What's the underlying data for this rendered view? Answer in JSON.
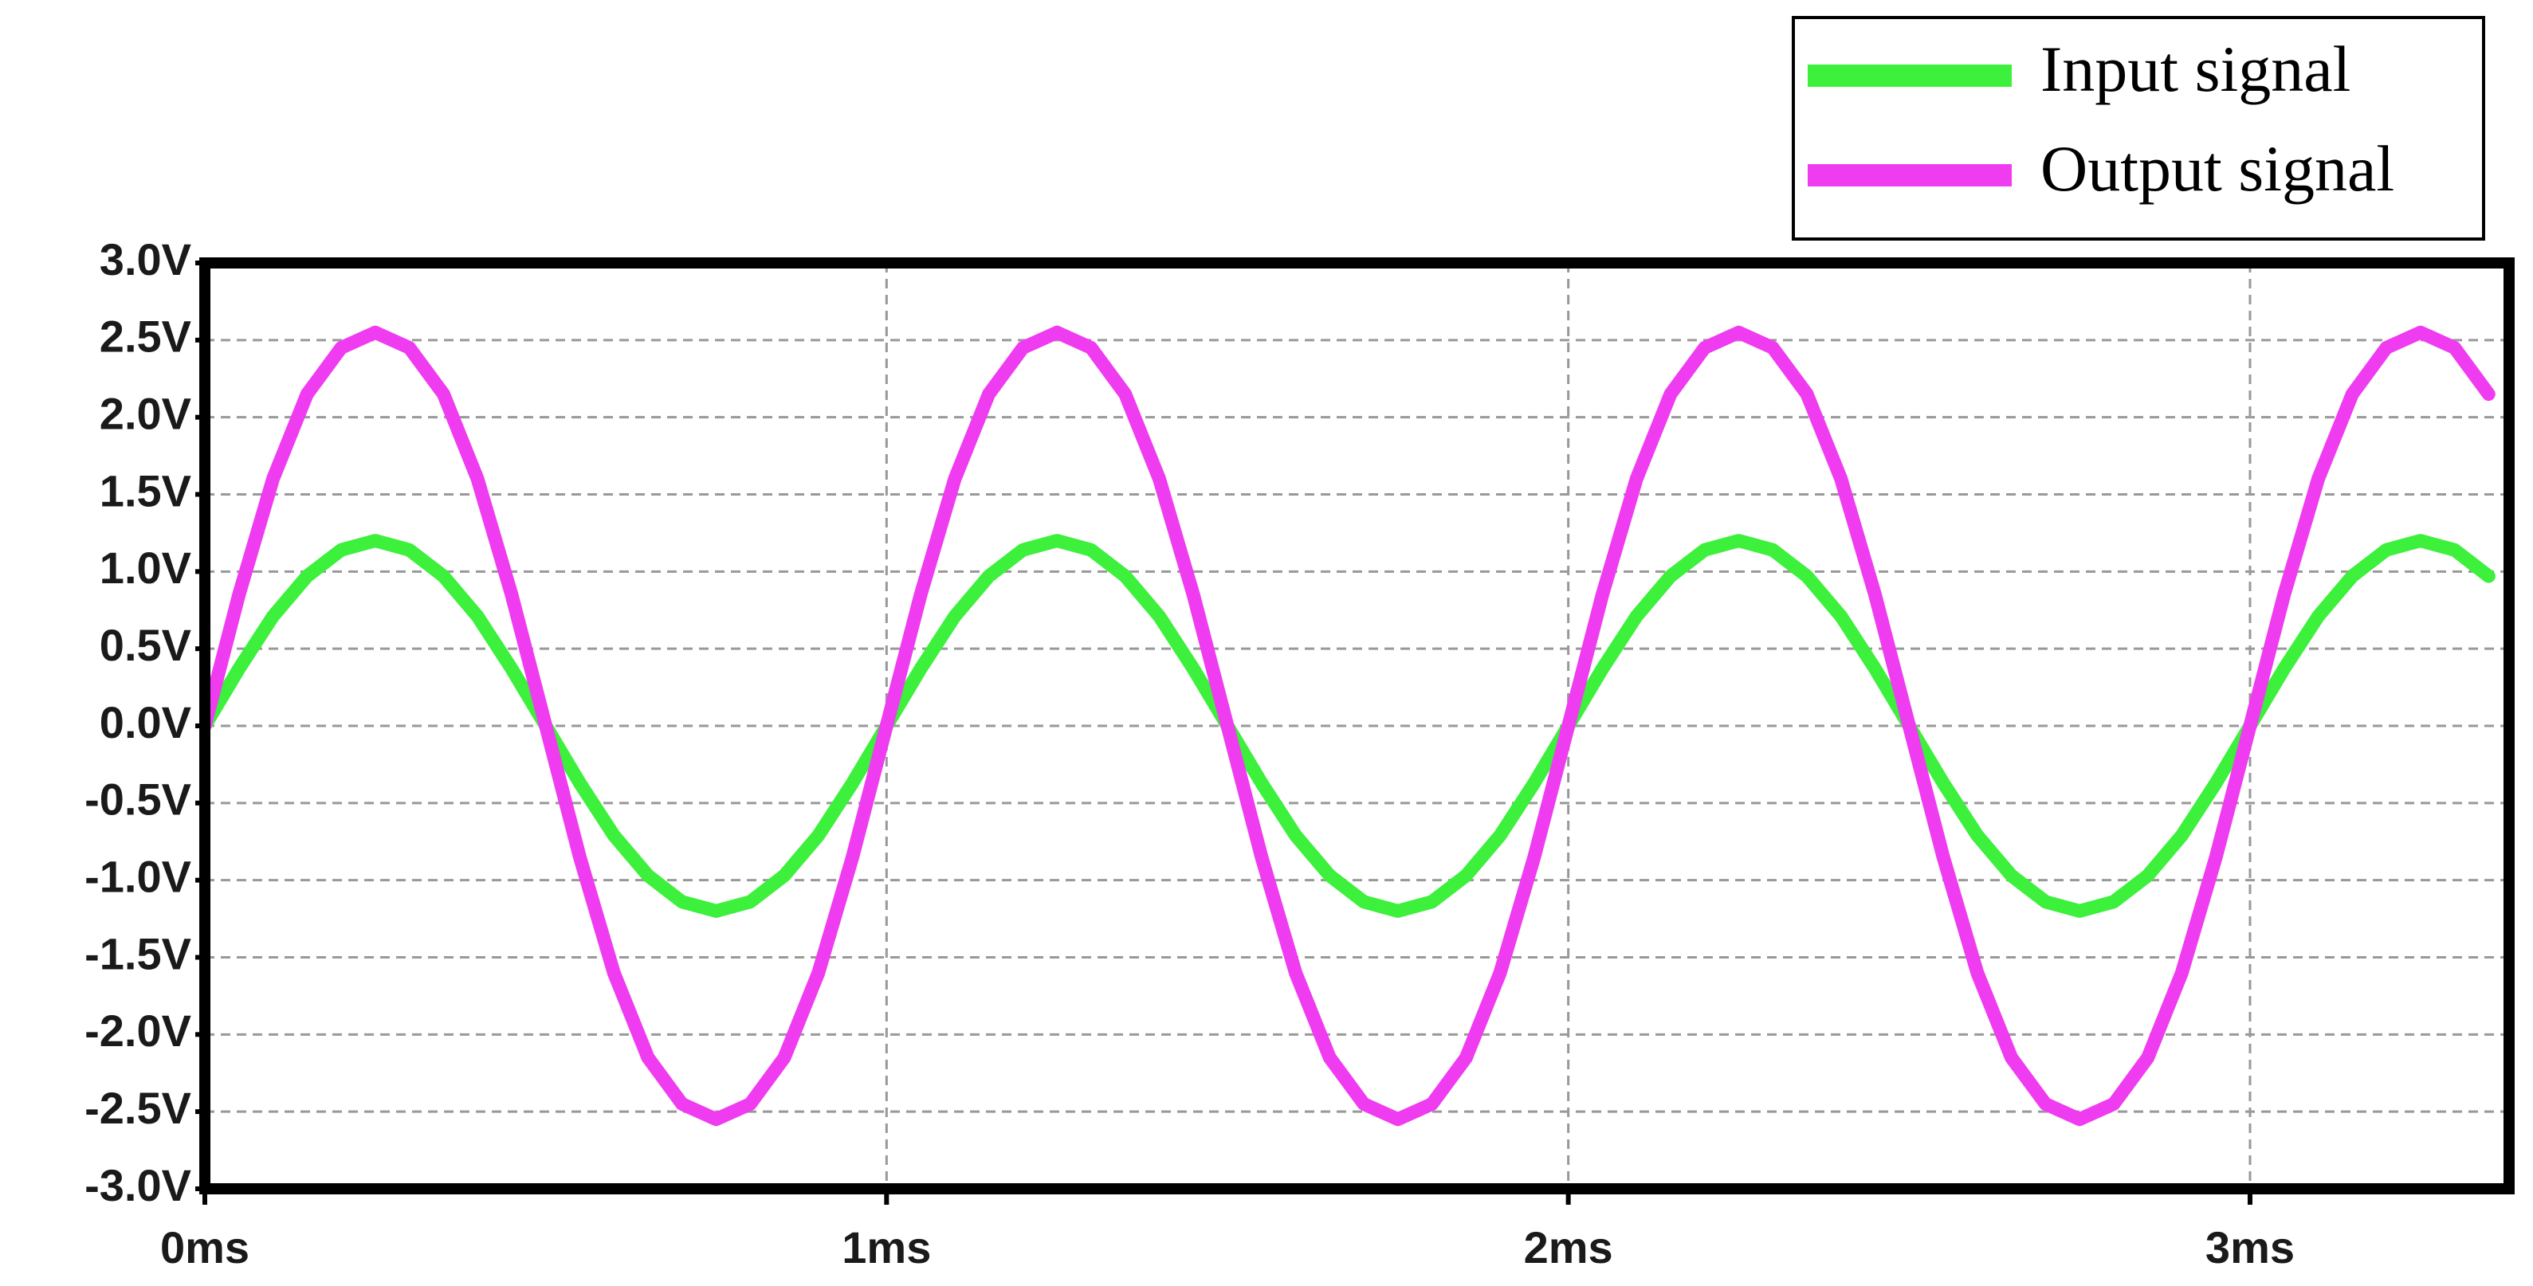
{
  "chart_data": {
    "type": "line",
    "x": [
      0,
      0.05,
      0.1,
      0.15,
      0.2,
      0.25,
      0.3,
      0.35,
      0.4,
      0.45,
      0.5,
      0.55,
      0.6,
      0.65,
      0.7,
      0.75,
      0.8,
      0.85,
      0.9,
      0.95,
      1,
      1.05,
      1.1,
      1.15,
      1.2,
      1.25,
      1.3,
      1.35,
      1.4,
      1.45,
      1.5,
      1.55,
      1.6,
      1.65,
      1.7,
      1.75,
      1.8,
      1.85,
      1.9,
      1.95,
      2,
      2.05,
      2.1,
      2.15,
      2.2,
      2.25,
      2.3,
      2.35,
      2.4,
      2.45,
      2.5,
      2.55,
      2.6,
      2.65,
      2.7,
      2.75,
      2.8,
      2.85,
      2.9,
      2.95,
      3,
      3.05,
      3.1,
      3.15,
      3.2,
      3.25,
      3.3,
      3.35
    ],
    "series": [
      {
        "name": "Input signal",
        "color": "#3cf03c",
        "values": [
          0,
          0.37,
          0.71,
          0.97,
          1.14,
          1.2,
          1.14,
          0.97,
          0.71,
          0.37,
          0,
          -0.37,
          -0.71,
          -0.97,
          -1.14,
          -1.2,
          -1.14,
          -0.97,
          -0.71,
          -0.37,
          0,
          0.37,
          0.71,
          0.97,
          1.14,
          1.2,
          1.14,
          0.97,
          0.71,
          0.37,
          0,
          -0.37,
          -0.71,
          -0.97,
          -1.14,
          -1.2,
          -1.14,
          -0.97,
          -0.71,
          -0.37,
          0,
          0.37,
          0.71,
          0.97,
          1.14,
          1.2,
          1.14,
          0.97,
          0.71,
          0.37,
          0,
          -0.37,
          -0.71,
          -0.97,
          -1.14,
          -1.2,
          -1.14,
          -0.97,
          -0.71,
          -0.37,
          0,
          0.37,
          0.71,
          0.97,
          1.14,
          1.2,
          1.14,
          0.97
        ]
      },
      {
        "name": "Output signal",
        "color": "#f03cf0",
        "values": [
          0,
          0.85,
          1.6,
          2.15,
          2.45,
          2.55,
          2.45,
          2.15,
          1.6,
          0.85,
          0,
          -0.85,
          -1.6,
          -2.15,
          -2.45,
          -2.55,
          -2.45,
          -2.15,
          -1.6,
          -0.85,
          0,
          0.85,
          1.6,
          2.15,
          2.45,
          2.55,
          2.45,
          2.15,
          1.6,
          0.85,
          0,
          -0.85,
          -1.6,
          -2.15,
          -2.45,
          -2.55,
          -2.45,
          -2.15,
          -1.6,
          -0.85,
          0,
          0.85,
          1.6,
          2.15,
          2.45,
          2.55,
          2.45,
          2.15,
          1.6,
          0.85,
          0,
          -0.85,
          -1.6,
          -2.15,
          -2.45,
          -2.55,
          -2.45,
          -2.15,
          -1.6,
          -0.85,
          0,
          0.85,
          1.6,
          2.15,
          2.45,
          2.55,
          2.45,
          2.15
        ]
      }
    ],
    "xlim": [
      0,
      3.38
    ],
    "xticks": [
      {
        "value": 0,
        "label": "0ms"
      },
      {
        "value": 1,
        "label": "1ms"
      },
      {
        "value": 2,
        "label": "2ms"
      },
      {
        "value": 3,
        "label": "3ms"
      }
    ],
    "ylim": [
      -3,
      3
    ],
    "yticks": [
      {
        "value": 3,
        "label": "3.0V"
      },
      {
        "value": 2.5,
        "label": "2.5V"
      },
      {
        "value": 2,
        "label": "2.0V"
      },
      {
        "value": 1.5,
        "label": "1.5V"
      },
      {
        "value": 1,
        "label": "1.0V"
      },
      {
        "value": 0.5,
        "label": "0.5V"
      },
      {
        "value": 0,
        "label": "0.0V"
      },
      {
        "value": -0.5,
        "label": "-0.5V"
      },
      {
        "value": -1,
        "label": "-1.0V"
      },
      {
        "value": -1.5,
        "label": "-1.5V"
      },
      {
        "value": -2,
        "label": "-2.0V"
      },
      {
        "value": -2.5,
        "label": "-2.5V"
      },
      {
        "value": -3,
        "label": "-3.0V"
      }
    ],
    "grid": true,
    "legend": "top-right"
  }
}
